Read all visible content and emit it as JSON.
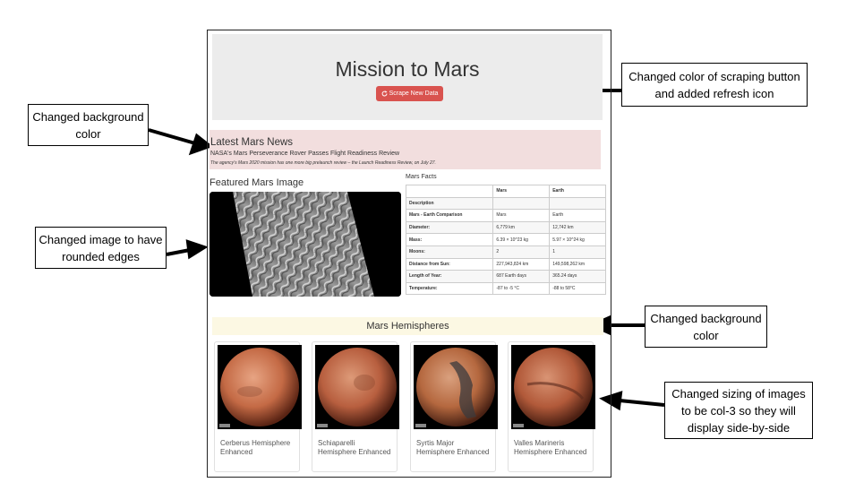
{
  "page": {
    "title": "Mission to Mars",
    "scrape_button": "Scrape New Data"
  },
  "news": {
    "heading": "Latest Mars News",
    "title": "NASA's Mars Perseverance Rover Passes Flight Readiness Review",
    "paragraph": "The agency's Mars 2020 mission has one more big prelaunch review – the Launch Readiness Review, on July 27."
  },
  "featured": {
    "heading": "Featured Mars Image"
  },
  "facts": {
    "heading": "Mars Facts",
    "columns": [
      "",
      "Mars",
      "Earth"
    ],
    "rows": [
      [
        "Description",
        "",
        ""
      ],
      [
        "Mars - Earth Comparison",
        "Mars",
        "Earth"
      ],
      [
        "Diameter:",
        "6,779 km",
        "12,742 km"
      ],
      [
        "Mass:",
        "6.39 × 10^23 kg",
        "5.97 × 10^24 kg"
      ],
      [
        "Moons:",
        "2",
        "1"
      ],
      [
        "Distance from Sun:",
        "227,943,824 km",
        "149,598,262 km"
      ],
      [
        "Length of Year:",
        "687 Earth days",
        "365.24 days"
      ],
      [
        "Temperature:",
        "-87 to -5 °C",
        "-88 to 58°C"
      ]
    ]
  },
  "hemispheres": {
    "heading": "Mars Hemispheres",
    "items": [
      {
        "title": "Cerberus Hemisphere Enhanced"
      },
      {
        "title": "Schiaparelli Hemisphere Enhanced"
      },
      {
        "title": "Syrtis Major Hemisphere Enhanced"
      },
      {
        "title": "Valles Marineris Hemisphere Enhanced"
      }
    ]
  },
  "annotations": {
    "background_left": "Changed background color",
    "image_rounded": "Changed image to have rounded edges",
    "scrape_button": "Changed color of scraping button and added refresh icon",
    "background_right": "Changed background color",
    "image_sizing": "Changed sizing of images to be col-3 so they will display side-by-side"
  },
  "colors": {
    "button": "#d9534f",
    "news_bg": "#f2dede",
    "hemi_bg": "#fcf8e3",
    "jumbotron_bg": "#ececec"
  }
}
